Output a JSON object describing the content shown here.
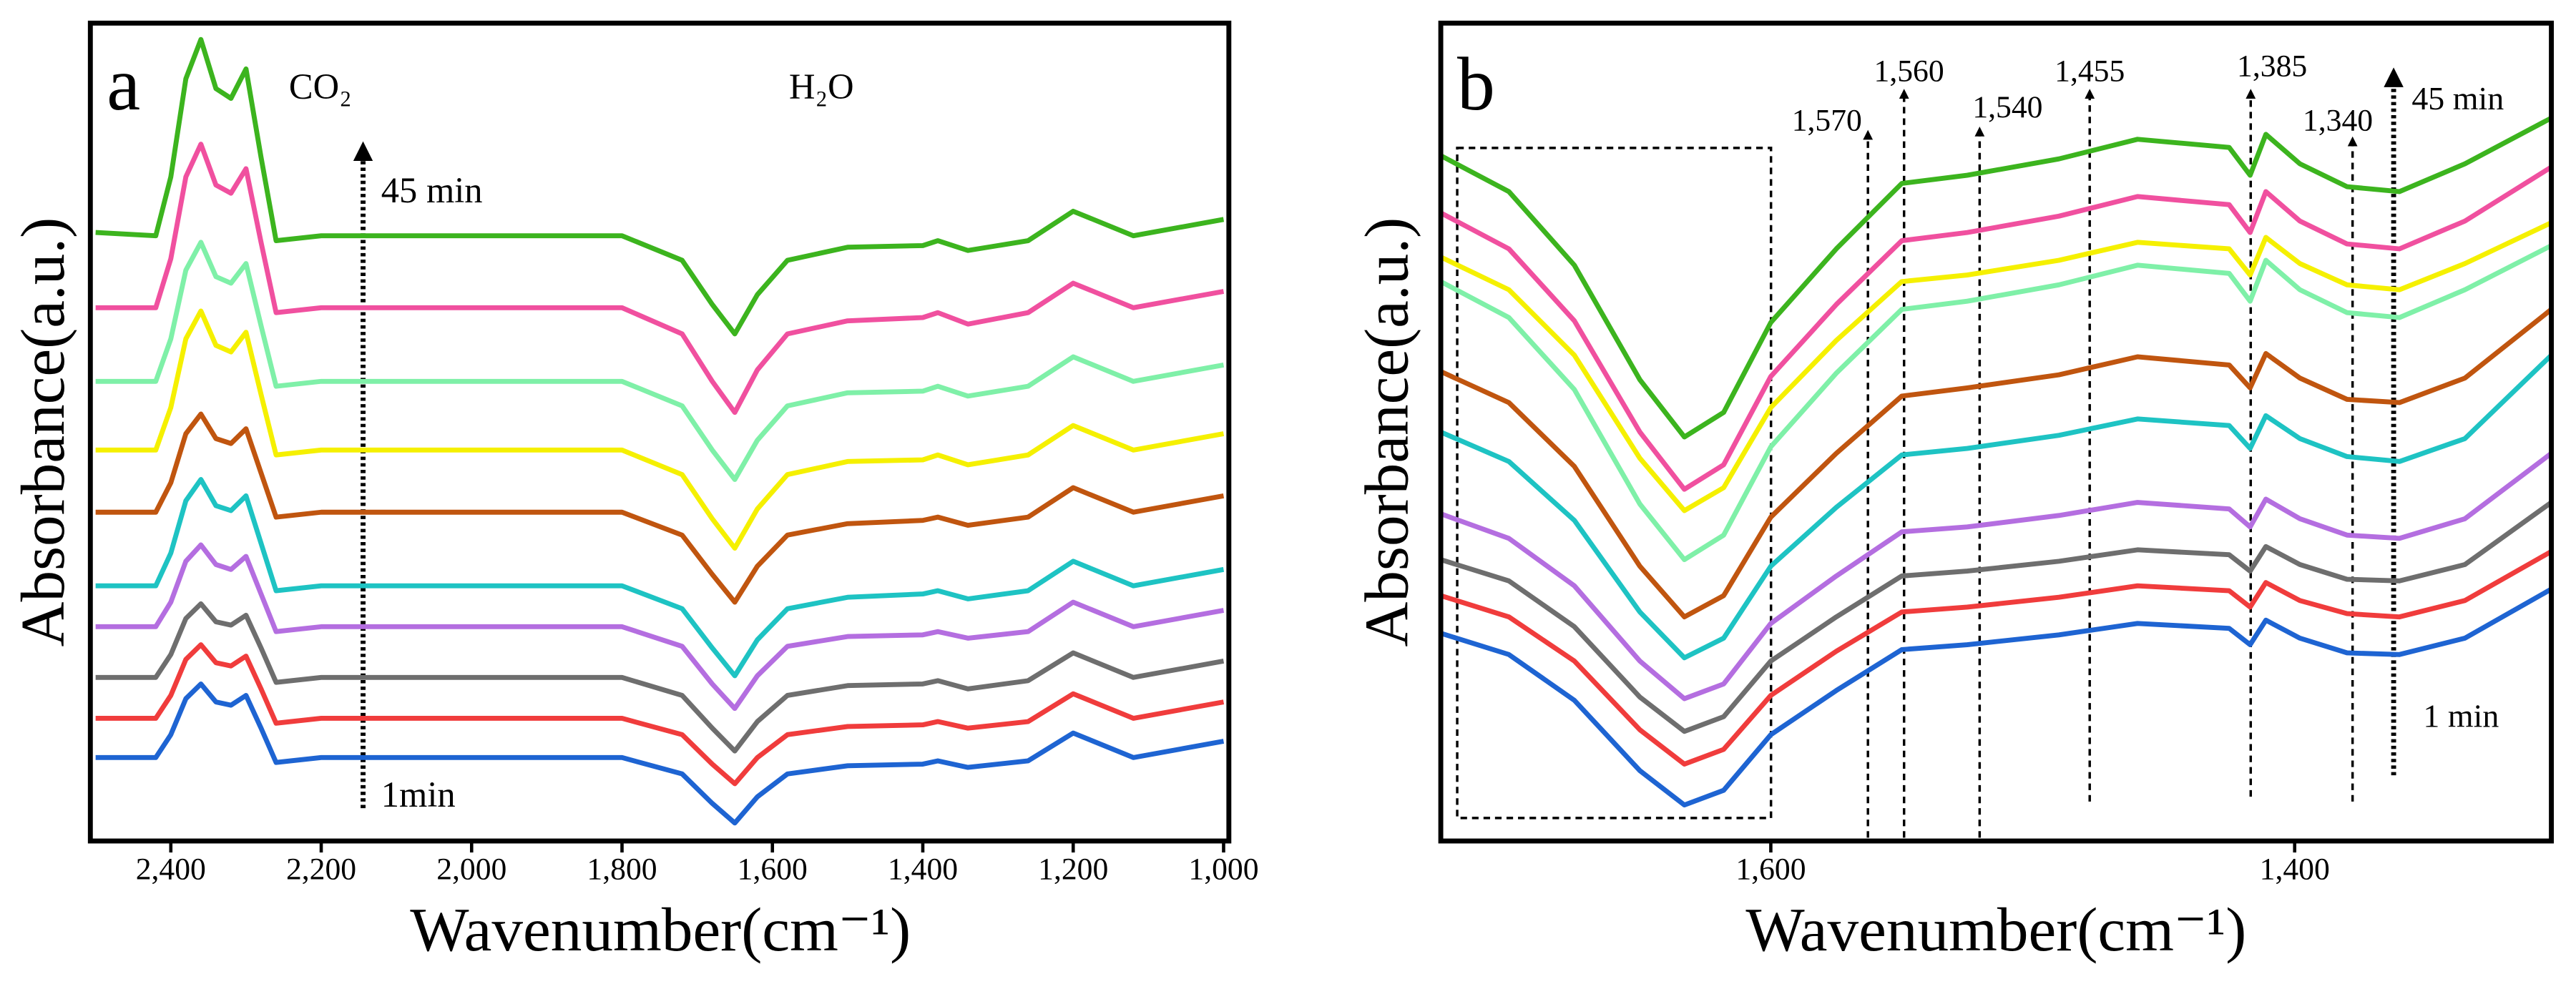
{
  "chart_data": [
    {
      "type": "line",
      "panel_label": "a",
      "x_label": "Wavenumber(cm⁻¹)",
      "y_label": "Absorbance(a.u.)",
      "x": [
        2500,
        2420,
        2400,
        2380,
        2360,
        2340,
        2320,
        2300,
        2280,
        2260,
        2200,
        2000,
        1800,
        1720,
        1680,
        1650,
        1620,
        1580,
        1500,
        1400,
        1380,
        1340,
        1260,
        1200,
        1120,
        1000
      ],
      "xlim": [
        2507,
        993
      ],
      "xticks": [
        {
          "value": 2400,
          "label": "2,400"
        },
        {
          "value": 2200,
          "label": "2,200"
        },
        {
          "value": 2000,
          "label": "2,000"
        },
        {
          "value": 1800,
          "label": "1,800"
        },
        {
          "value": 1600,
          "label": "1,600"
        },
        {
          "value": 1400,
          "label": "1,400"
        },
        {
          "value": 1200,
          "label": "1,200"
        },
        {
          "value": 1000,
          "label": "1,000"
        }
      ],
      "ylim": [
        0,
        500
      ],
      "annotations": [
        {
          "text": "CO₂"
        },
        {
          "text": "H₂O"
        },
        {
          "text": "45 min"
        },
        {
          "text": "1min"
        }
      ],
      "series": [
        {
          "color": "#3cb41e",
          "values": [
            372,
            370,
            406,
            466,
            490,
            460,
            454,
            472,
            418,
            367,
            370,
            370,
            370,
            355,
            328,
            310,
            334,
            355,
            363,
            364,
            367,
            361,
            367,
            385,
            370,
            380
          ]
        },
        {
          "color": "#f0509f",
          "values": [
            326,
            326,
            356,
            406,
            426,
            401,
            396,
            411,
            366,
            323,
            326,
            326,
            326,
            310,
            281,
            262,
            288,
            310,
            318,
            320,
            323,
            316,
            323,
            341,
            326,
            336
          ]
        },
        {
          "color": "#7ff0a8",
          "values": [
            281,
            281,
            307,
            349,
            366,
            345,
            341,
            353,
            315,
            278,
            281,
            281,
            281,
            266,
            239,
            221,
            245,
            266,
            274,
            275,
            278,
            272,
            278,
            296,
            281,
            291
          ]
        },
        {
          "color": "#f5f000",
          "values": [
            239,
            239,
            265,
            307,
            324,
            303,
            299,
            311,
            273,
            236,
            239,
            239,
            239,
            224,
            197,
            179,
            203,
            224,
            232,
            233,
            236,
            230,
            236,
            254,
            239,
            249
          ]
        },
        {
          "color": "#c0550f",
          "values": [
            201,
            201,
            219,
            249,
            261,
            246,
            243,
            252,
            225,
            198,
            201,
            201,
            201,
            187,
            163,
            146,
            168,
            187,
            194,
            196,
            198,
            193,
            198,
            216,
            201,
            211
          ]
        },
        {
          "color": "#1ec3c3",
          "values": [
            156,
            156,
            176,
            208,
            221,
            205,
            202,
            211,
            182,
            153,
            156,
            156,
            156,
            142,
            118,
            101,
            123,
            142,
            149,
            151,
            153,
            148,
            153,
            171,
            156,
            166
          ]
        },
        {
          "color": "#b46ee0",
          "values": [
            131,
            131,
            146,
            171,
            181,
            169,
            166,
            174,
            151,
            128,
            131,
            131,
            131,
            119,
            96,
            81,
            101,
            119,
            125,
            126,
            128,
            124,
            128,
            146,
            131,
            141
          ]
        },
        {
          "color": "#6e6e6e",
          "values": [
            100,
            100,
            114,
            136,
            145,
            134,
            132,
            138,
            118,
            97,
            100,
            100,
            100,
            89,
            69,
            55,
            73,
            89,
            95,
            96,
            98,
            93,
            98,
            115,
            100,
            110
          ]
        },
        {
          "color": "#f03c3c",
          "values": [
            75,
            75,
            89,
            111,
            120,
            109,
            107,
            113,
            93,
            72,
            75,
            75,
            75,
            65,
            47,
            35,
            51,
            65,
            70,
            71,
            73,
            69,
            73,
            90,
            75,
            85
          ]
        },
        {
          "color": "#1e64d2",
          "values": [
            51,
            51,
            65,
            87,
            96,
            85,
            83,
            89,
            69,
            48,
            51,
            51,
            51,
            41,
            23,
            11,
            27,
            41,
            46,
            47,
            49,
            45,
            49,
            66,
            51,
            61
          ]
        }
      ]
    },
    {
      "type": "line",
      "panel_label": "b",
      "x_label": "Wavenumber(cm⁻¹)",
      "y_label": "Absorbance(a.u.)",
      "x": [
        1726,
        1700,
        1675,
        1650,
        1633,
        1618,
        1600,
        1575,
        1550,
        1525,
        1490,
        1460,
        1425,
        1417,
        1411,
        1398,
        1380,
        1360,
        1335,
        1302
      ],
      "xlim": [
        1726,
        1302
      ],
      "xticks": [
        {
          "value": 1600,
          "label": "1,600"
        },
        {
          "value": 1400,
          "label": "1,400"
        }
      ],
      "ylim": [
        0,
        500
      ],
      "annotations": [
        {
          "text": "1,570"
        },
        {
          "text": "1,560"
        },
        {
          "text": "1,540"
        },
        {
          "text": "1,455"
        },
        {
          "text": "1,385"
        },
        {
          "text": "1,340"
        },
        {
          "text": "45 min"
        },
        {
          "text": "1 min"
        }
      ],
      "series": [
        {
          "color": "#3cb41e",
          "values": [
            419,
            397,
            352,
            282,
            247,
            262,
            317,
            362,
            402,
            407,
            417,
            429,
            424,
            407,
            432,
            414,
            400,
            397,
            414,
            442
          ]
        },
        {
          "color": "#f0509f",
          "values": [
            384,
            362,
            318,
            250,
            215,
            230,
            284,
            328,
            367,
            372,
            382,
            394,
            389,
            372,
            397,
            379,
            365,
            362,
            379,
            412
          ]
        },
        {
          "color": "#f5f000",
          "values": [
            357,
            337,
            297,
            234,
            202,
            216,
            265,
            306,
            342,
            346,
            355,
            366,
            362,
            346,
            369,
            353,
            340,
            337,
            353,
            378
          ]
        },
        {
          "color": "#7ff0a8",
          "values": [
            342,
            320,
            276,
            206,
            172,
            187,
            241,
            286,
            325,
            330,
            340,
            352,
            347,
            330,
            355,
            337,
            323,
            320,
            337,
            364
          ]
        },
        {
          "color": "#c0550f",
          "values": [
            287,
            268,
            229,
            168,
            137,
            150,
            198,
            237,
            272,
            277,
            285,
            296,
            291,
            277,
            298,
            283,
            270,
            268,
            283,
            325
          ]
        },
        {
          "color": "#1ec3c3",
          "values": [
            250,
            232,
            196,
            140,
            112,
            124,
            168,
            204,
            236,
            240,
            248,
            258,
            254,
            240,
            260,
            246,
            235,
            232,
            246,
            297
          ]
        },
        {
          "color": "#b46ee0",
          "values": [
            200,
            185,
            156,
            110,
            87,
            96,
            133,
            162,
            189,
            192,
            199,
            207,
            203,
            192,
            209,
            197,
            187,
            185,
            197,
            237
          ]
        },
        {
          "color": "#6e6e6e",
          "values": [
            172,
            159,
            131,
            88,
            67,
            76,
            110,
            137,
            162,
            165,
            171,
            178,
            175,
            165,
            180,
            169,
            160,
            159,
            169,
            207
          ]
        },
        {
          "color": "#f03c3c",
          "values": [
            150,
            137,
            110,
            68,
            47,
            56,
            89,
            116,
            140,
            143,
            149,
            156,
            153,
            143,
            158,
            147,
            139,
            137,
            147,
            177
          ]
        },
        {
          "color": "#1e64d2",
          "values": [
            127,
            114,
            86,
            43,
            22,
            31,
            65,
            92,
            117,
            120,
            126,
            133,
            130,
            120,
            135,
            124,
            115,
            114,
            124,
            154
          ]
        }
      ]
    }
  ]
}
